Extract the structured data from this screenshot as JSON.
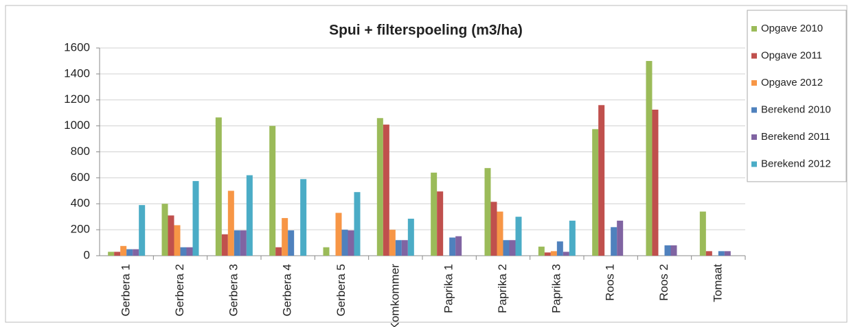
{
  "chart_data": {
    "type": "bar",
    "title": "Spui + filterspoeling (m3/ha)",
    "categories": [
      "Gerbera 1",
      "Gerbera 2",
      "Gerbera 3",
      "Gerbera 4",
      "Gerbera 5",
      "Komkommer",
      "Paprika 1",
      "Paprika 2",
      "Paprika 3",
      "Roos 1",
      "Roos 2",
      "Tomaat"
    ],
    "series": [
      {
        "name": "Opgave 2010",
        "color": "#9bbb59",
        "values": [
          30,
          400,
          1065,
          1000,
          65,
          1060,
          640,
          675,
          70,
          975,
          1500,
          340
        ]
      },
      {
        "name": "Opgave 2011",
        "color": "#c0504d",
        "values": [
          30,
          310,
          165,
          65,
          0,
          1010,
          495,
          415,
          25,
          1160,
          1125,
          35
        ]
      },
      {
        "name": "Opgave 2012",
        "color": "#f79646",
        "values": [
          75,
          235,
          500,
          290,
          330,
          200,
          0,
          340,
          35,
          0,
          0,
          0
        ]
      },
      {
        "name": "Berekend 2010",
        "color": "#4f81bd",
        "values": [
          50,
          65,
          195,
          195,
          200,
          120,
          140,
          120,
          110,
          220,
          80,
          35
        ]
      },
      {
        "name": "Berekend 2011",
        "color": "#8064a2",
        "values": [
          50,
          65,
          195,
          0,
          195,
          120,
          150,
          120,
          30,
          270,
          80,
          35
        ]
      },
      {
        "name": "Berekend 2012",
        "color": "#4bacc6",
        "values": [
          390,
          575,
          620,
          590,
          490,
          285,
          0,
          300,
          270,
          0,
          0,
          0
        ]
      }
    ],
    "ylim": [
      0,
      1600
    ],
    "yticks": [
      0,
      200,
      400,
      600,
      800,
      1000,
      1200,
      1400,
      1600
    ],
    "grid": true,
    "legend": "right"
  }
}
